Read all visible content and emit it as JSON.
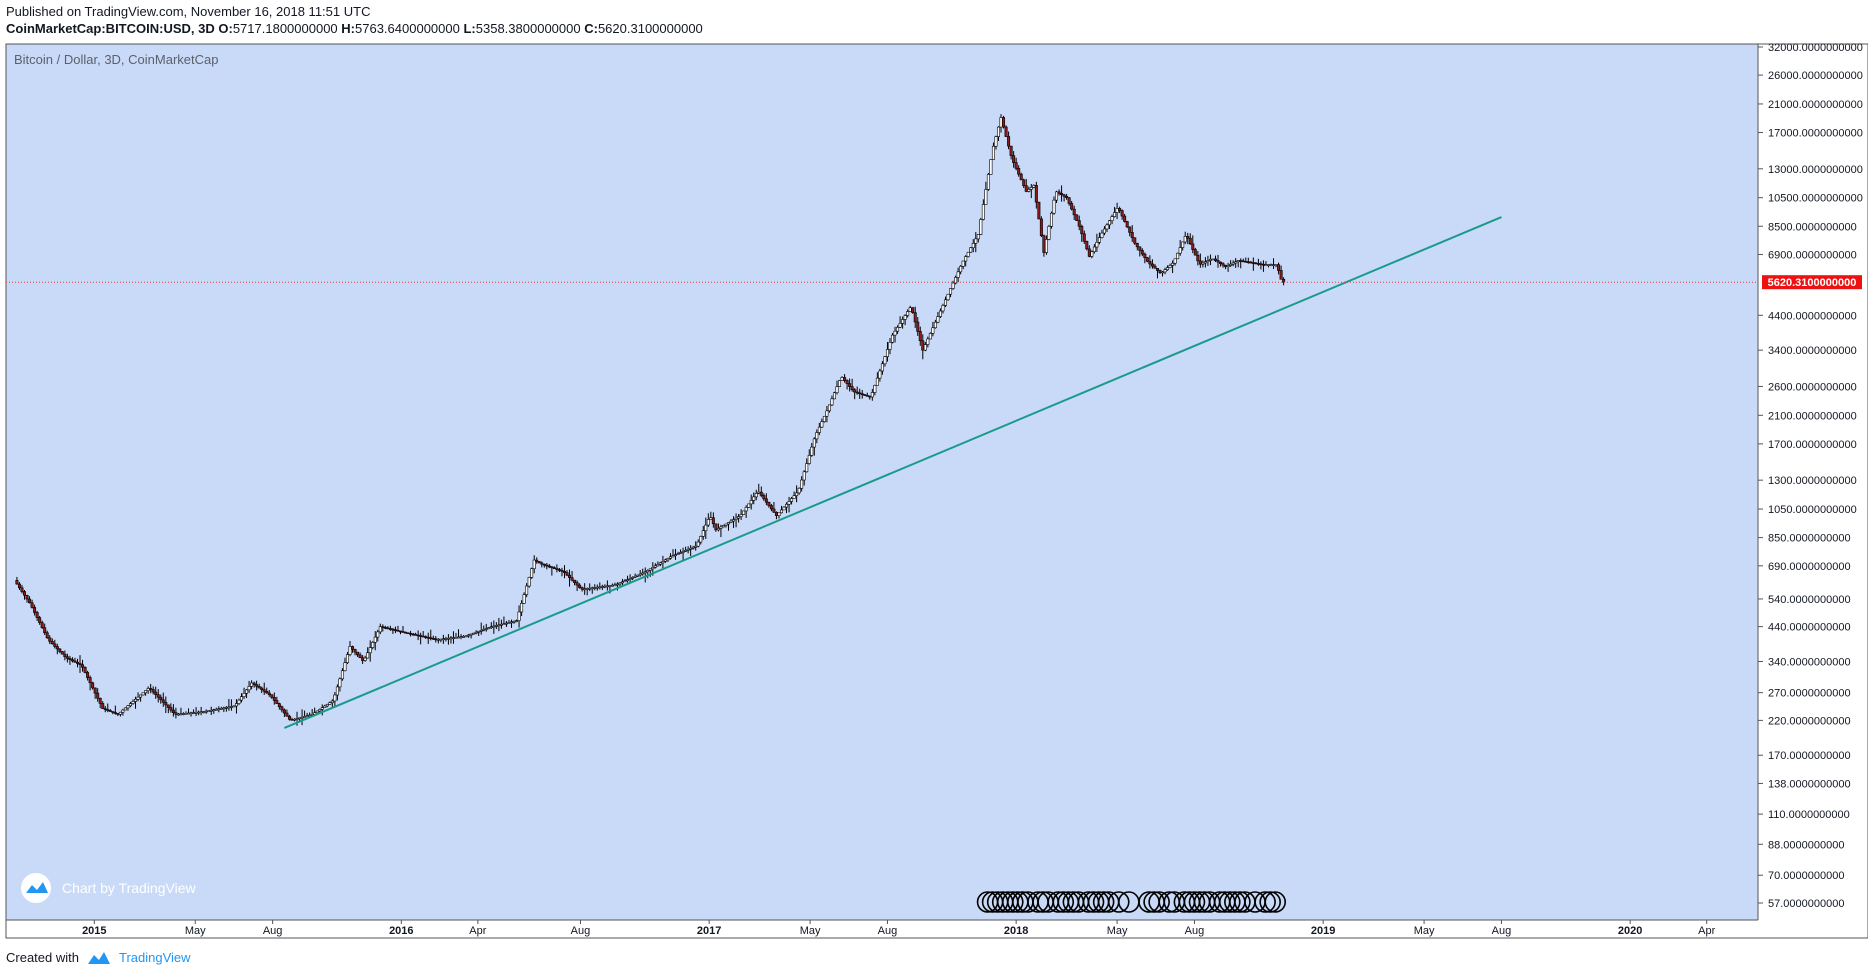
{
  "header": {
    "published": "Published on TradingView.com, November 16, 2018 11:51 UTC",
    "symbol": "CoinMarketCap:BITCOIN:USD, 3D",
    "o_label": "O:",
    "o_value": "5717.1800000000",
    "h_label": "H:",
    "h_value": "5763.6400000000",
    "l_label": "L:",
    "l_value": "5358.3800000000",
    "c_label": "C:",
    "c_value": "5620.3100000000"
  },
  "legend_title": "Bitcoin / Dollar, 3D, CoinMarketCap",
  "watermark": "Chart by TradingView",
  "footer": {
    "created_with": "Created with",
    "brand": "TradingView"
  },
  "colors": {
    "background": "#c9daf8",
    "trendline": "#1a9a8a",
    "candle_up": "#ffffff",
    "candle_down": "#8b1a1a",
    "price_line": "#e53935",
    "price_label_bg": "#ee1111"
  },
  "chart_data": {
    "type": "candlestick",
    "y_scale": "log",
    "last_price_label": "5620.3100000000",
    "last_price": 5620.31,
    "x_ticks": [
      "2015",
      "May",
      "Aug",
      "2016",
      "Apr",
      "Aug",
      "2017",
      "May",
      "Aug",
      "2018",
      "May",
      "Aug",
      "2019",
      "May",
      "Aug",
      "2020",
      "Apr"
    ],
    "x_tick_dates": [
      "2015-01-01",
      "2015-05-01",
      "2015-08-01",
      "2016-01-01",
      "2016-04-01",
      "2016-08-01",
      "2017-01-01",
      "2017-05-01",
      "2017-08-01",
      "2018-01-01",
      "2018-05-01",
      "2018-08-01",
      "2019-01-01",
      "2019-05-01",
      "2019-08-01",
      "2020-01-01",
      "2020-04-01"
    ],
    "y_ticks": [
      "32000.0000000000",
      "26000.0000000000",
      "21000.0000000000",
      "17000.0000000000",
      "13000.0000000000",
      "10500.0000000000",
      "8500.0000000000",
      "6900.0000000000",
      "4400.0000000000",
      "3400.0000000000",
      "2600.0000000000",
      "2100.0000000000",
      "1700.0000000000",
      "1300.0000000000",
      "1050.0000000000",
      "850.0000000000",
      "690.0000000000",
      "540.0000000000",
      "440.0000000000",
      "340.0000000000",
      "270.0000000000",
      "220.0000000000",
      "170.0000000000",
      "138.0000000000",
      "110.0000000000",
      "88.0000000000",
      "70.0000000000",
      "57.0000000000"
    ],
    "y_tick_values": [
      32000,
      26000,
      21000,
      17000,
      13000,
      10500,
      8500,
      6900,
      4400,
      3400,
      2600,
      2100,
      1700,
      1300,
      1050,
      850,
      690,
      540,
      440,
      340,
      270,
      220,
      170,
      138,
      110,
      88,
      70,
      57
    ],
    "series": [
      {
        "x": [
          "2014-10-01",
          "2014-10-20",
          "2014-11-10",
          "2014-12-01",
          "2014-12-20",
          "2015-01-14",
          "2015-02-01",
          "2015-03-10",
          "2015-04-10",
          "2015-05-15",
          "2015-06-20",
          "2015-07-10",
          "2015-08-01",
          "2015-08-25",
          "2015-09-20",
          "2015-10-15",
          "2015-11-04",
          "2015-11-20",
          "2015-12-10",
          "2016-01-10",
          "2016-02-15",
          "2016-03-20",
          "2016-04-20",
          "2016-05-20",
          "2016-06-10",
          "2016-06-18",
          "2016-07-15",
          "2016-08-05",
          "2016-09-15",
          "2016-10-20",
          "2016-11-20",
          "2016-12-20",
          "2017-01-05",
          "2017-01-12",
          "2017-02-10",
          "2017-03-03",
          "2017-03-25",
          "2017-04-20",
          "2017-05-10",
          "2017-05-25",
          "2017-06-10",
          "2017-06-25",
          "2017-07-15",
          "2017-08-10",
          "2017-09-01",
          "2017-09-15",
          "2017-10-10",
          "2017-11-01",
          "2017-11-20",
          "2017-12-07",
          "2017-12-17",
          "2017-12-30",
          "2018-01-16",
          "2018-01-25",
          "2018-02-06",
          "2018-02-20",
          "2018-03-05",
          "2018-03-20",
          "2018-04-01",
          "2018-04-15",
          "2018-05-05",
          "2018-05-25",
          "2018-06-10",
          "2018-06-25",
          "2018-07-10",
          "2018-07-25",
          "2018-08-10",
          "2018-08-25",
          "2018-09-10",
          "2018-09-25",
          "2018-10-10",
          "2018-10-25",
          "2018-11-10",
          "2018-11-16"
        ],
        "y": [
          620,
          520,
          400,
          350,
          330,
          240,
          230,
          280,
          230,
          235,
          245,
          290,
          265,
          220,
          230,
          255,
          380,
          340,
          440,
          420,
          400,
          410,
          440,
          460,
          720,
          700,
          660,
          580,
          600,
          660,
          740,
          800,
          1000,
          900,
          1000,
          1200,
          1000,
          1200,
          1800,
          2200,
          2800,
          2500,
          2400,
          3800,
          4700,
          3400,
          4800,
          6500,
          8000,
          15000,
          19000,
          14000,
          11000,
          11500,
          7000,
          11000,
          10500,
          8500,
          6800,
          8000,
          9800,
          7500,
          6500,
          6000,
          6500,
          8000,
          6400,
          6700,
          6300,
          6600,
          6500,
          6400,
          6400,
          5620
        ]
      },
      {
        "name": "",
        "x": [
          "2015-08-15",
          "2019-08-01"
        ],
        "y": [
          208,
          9100
        ]
      }
    ]
  }
}
